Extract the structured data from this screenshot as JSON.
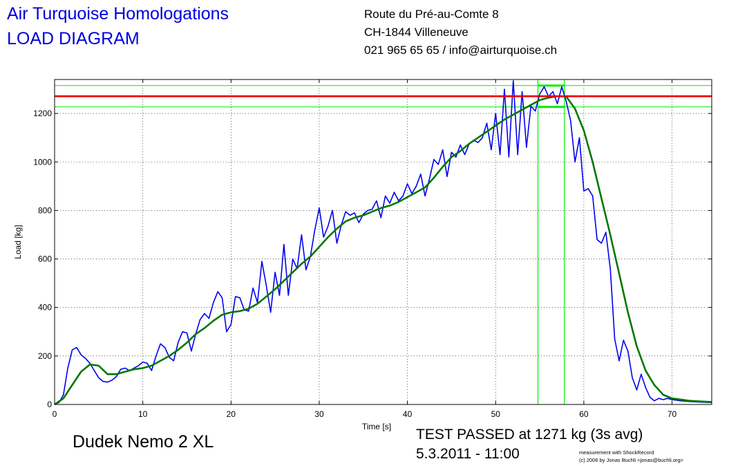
{
  "header": {
    "company": "Air Turquoise Homologations",
    "doc_title": "LOAD DIAGRAM",
    "address_line1": "Route du Pré-au-Comte 8",
    "address_line2": "CH-1844 Villeneuve",
    "address_line3": "021 965 65 65 / info@airturquoise.ch"
  },
  "footer": {
    "model": "Dudek Nemo 2 XL",
    "result": "TEST PASSED at 1271 kg (3s avg)",
    "datetime": "5.3.2011 - 11:00",
    "credit_line1": "measurement with ShockRecord",
    "credit_line2": "(c) 2006 by Jonas Buchli <jonas@buchli.org>"
  },
  "colors": {
    "raw": "#0000ee",
    "avg": "#007700",
    "threshold": "#ee0000",
    "window": "#00ee00",
    "grid": "#000000"
  },
  "chart_data": {
    "type": "line",
    "xlabel": "Time [s]",
    "ylabel": "Load [kg]",
    "xlim": [
      0,
      74.5
    ],
    "ylim": [
      0,
      1340
    ],
    "xticks": [
      0,
      10,
      20,
      30,
      40,
      50,
      60,
      70
    ],
    "yticks": [
      0,
      200,
      400,
      600,
      800,
      1000,
      1200
    ],
    "grid": true,
    "threshold_load": 1271,
    "band_loads": [
      1227,
      1315
    ],
    "window_time": [
      54.8,
      57.8
    ],
    "series": [
      {
        "role": "raw",
        "points": [
          [
            0,
            0
          ],
          [
            0.5,
            8
          ],
          [
            1,
            40
          ],
          [
            1.5,
            150
          ],
          [
            2,
            225
          ],
          [
            2.5,
            235
          ],
          [
            3,
            205
          ],
          [
            3.5,
            190
          ],
          [
            4,
            170
          ],
          [
            4.5,
            140
          ],
          [
            5,
            110
          ],
          [
            5.5,
            95
          ],
          [
            6,
            92
          ],
          [
            6.5,
            100
          ],
          [
            7,
            115
          ],
          [
            7.5,
            145
          ],
          [
            8,
            150
          ],
          [
            8.5,
            140
          ],
          [
            9,
            150
          ],
          [
            9.5,
            160
          ],
          [
            10,
            175
          ],
          [
            10.5,
            170
          ],
          [
            11,
            140
          ],
          [
            11.5,
            200
          ],
          [
            12,
            250
          ],
          [
            12.5,
            235
          ],
          [
            13,
            195
          ],
          [
            13.5,
            180
          ],
          [
            14,
            255
          ],
          [
            14.5,
            300
          ],
          [
            15,
            295
          ],
          [
            15.5,
            220
          ],
          [
            16,
            290
          ],
          [
            16.5,
            350
          ],
          [
            17,
            375
          ],
          [
            17.5,
            355
          ],
          [
            18,
            420
          ],
          [
            18.5,
            465
          ],
          [
            19,
            440
          ],
          [
            19.5,
            300
          ],
          [
            20,
            330
          ],
          [
            20.5,
            445
          ],
          [
            21,
            440
          ],
          [
            21.5,
            390
          ],
          [
            22,
            385
          ],
          [
            22.5,
            480
          ],
          [
            23,
            420
          ],
          [
            23.5,
            590
          ],
          [
            24,
            490
          ],
          [
            24.5,
            380
          ],
          [
            25,
            545
          ],
          [
            25.5,
            450
          ],
          [
            26,
            660
          ],
          [
            26.5,
            450
          ],
          [
            27,
            600
          ],
          [
            27.5,
            560
          ],
          [
            28,
            700
          ],
          [
            28.5,
            555
          ],
          [
            29,
            610
          ],
          [
            29.5,
            720
          ],
          [
            30,
            810
          ],
          [
            30.5,
            690
          ],
          [
            31,
            735
          ],
          [
            31.5,
            800
          ],
          [
            32,
            665
          ],
          [
            32.5,
            740
          ],
          [
            33,
            795
          ],
          [
            33.5,
            780
          ],
          [
            34,
            790
          ],
          [
            34.5,
            750
          ],
          [
            35,
            785
          ],
          [
            35.5,
            800
          ],
          [
            36,
            805
          ],
          [
            36.5,
            840
          ],
          [
            37,
            770
          ],
          [
            37.5,
            860
          ],
          [
            38,
            830
          ],
          [
            38.5,
            875
          ],
          [
            39,
            840
          ],
          [
            39.5,
            860
          ],
          [
            40,
            910
          ],
          [
            40.5,
            870
          ],
          [
            41,
            900
          ],
          [
            41.5,
            950
          ],
          [
            42,
            860
          ],
          [
            42.5,
            930
          ],
          [
            43,
            1010
          ],
          [
            43.5,
            990
          ],
          [
            44,
            1050
          ],
          [
            44.5,
            940
          ],
          [
            45,
            1040
          ],
          [
            45.5,
            1020
          ],
          [
            46,
            1070
          ],
          [
            46.5,
            1030
          ],
          [
            47,
            1075
          ],
          [
            47.5,
            1090
          ],
          [
            48,
            1080
          ],
          [
            48.5,
            1100
          ],
          [
            49,
            1160
          ],
          [
            49.5,
            1050
          ],
          [
            50,
            1200
          ],
          [
            50.5,
            1030
          ],
          [
            51,
            1300
          ],
          [
            51.5,
            1020
          ],
          [
            52,
            1335
          ],
          [
            52.5,
            1030
          ],
          [
            53,
            1290
          ],
          [
            53.5,
            1060
          ],
          [
            54,
            1230
          ],
          [
            54.5,
            1210
          ],
          [
            55,
            1280
          ],
          [
            55.5,
            1310
          ],
          [
            56,
            1270
          ],
          [
            56.5,
            1290
          ],
          [
            57,
            1240
          ],
          [
            57.5,
            1310
          ],
          [
            58,
            1250
          ],
          [
            58.5,
            1170
          ],
          [
            59,
            1000
          ],
          [
            59.5,
            1100
          ],
          [
            60,
            880
          ],
          [
            60.5,
            890
          ],
          [
            61,
            860
          ],
          [
            61.5,
            680
          ],
          [
            62,
            665
          ],
          [
            62.5,
            710
          ],
          [
            63,
            560
          ],
          [
            63.5,
            270
          ],
          [
            64,
            180
          ],
          [
            64.5,
            265
          ],
          [
            65,
            220
          ],
          [
            65.5,
            110
          ],
          [
            66,
            60
          ],
          [
            66.5,
            125
          ],
          [
            67,
            70
          ],
          [
            67.5,
            30
          ],
          [
            68,
            15
          ],
          [
            68.5,
            25
          ],
          [
            69,
            20
          ],
          [
            69.5,
            25
          ],
          [
            70,
            20
          ],
          [
            71,
            15
          ],
          [
            72,
            12
          ],
          [
            73,
            10
          ],
          [
            74.5,
            8
          ]
        ]
      },
      {
        "role": "avg",
        "points": [
          [
            0,
            0
          ],
          [
            1,
            25
          ],
          [
            2,
            80
          ],
          [
            3,
            135
          ],
          [
            4,
            165
          ],
          [
            5,
            160
          ],
          [
            6,
            125
          ],
          [
            7,
            125
          ],
          [
            8,
            135
          ],
          [
            9,
            145
          ],
          [
            10,
            150
          ],
          [
            11,
            160
          ],
          [
            12,
            180
          ],
          [
            13,
            200
          ],
          [
            14,
            225
          ],
          [
            15,
            255
          ],
          [
            16,
            290
          ],
          [
            17,
            315
          ],
          [
            18,
            345
          ],
          [
            19,
            370
          ],
          [
            20,
            380
          ],
          [
            21,
            385
          ],
          [
            22,
            395
          ],
          [
            23,
            415
          ],
          [
            24,
            445
          ],
          [
            25,
            475
          ],
          [
            26,
            510
          ],
          [
            27,
            545
          ],
          [
            28,
            580
          ],
          [
            29,
            610
          ],
          [
            30,
            650
          ],
          [
            31,
            690
          ],
          [
            32,
            725
          ],
          [
            33,
            755
          ],
          [
            34,
            770
          ],
          [
            35,
            780
          ],
          [
            36,
            795
          ],
          [
            37,
            810
          ],
          [
            38,
            820
          ],
          [
            39,
            835
          ],
          [
            40,
            855
          ],
          [
            41,
            875
          ],
          [
            42,
            895
          ],
          [
            43,
            935
          ],
          [
            44,
            980
          ],
          [
            45,
            1020
          ],
          [
            46,
            1045
          ],
          [
            47,
            1075
          ],
          [
            48,
            1100
          ],
          [
            49,
            1125
          ],
          [
            50,
            1150
          ],
          [
            51,
            1175
          ],
          [
            52,
            1195
          ],
          [
            53,
            1215
          ],
          [
            54,
            1235
          ],
          [
            55,
            1255
          ],
          [
            56,
            1265
          ],
          [
            57,
            1271
          ],
          [
            58,
            1270
          ],
          [
            59,
            1220
          ],
          [
            60,
            1130
          ],
          [
            61,
            1000
          ],
          [
            62,
            850
          ],
          [
            63,
            700
          ],
          [
            64,
            540
          ],
          [
            65,
            380
          ],
          [
            66,
            240
          ],
          [
            67,
            140
          ],
          [
            68,
            80
          ],
          [
            69,
            40
          ],
          [
            70,
            25
          ],
          [
            72,
            15
          ],
          [
            74.5,
            10
          ]
        ]
      }
    ]
  }
}
